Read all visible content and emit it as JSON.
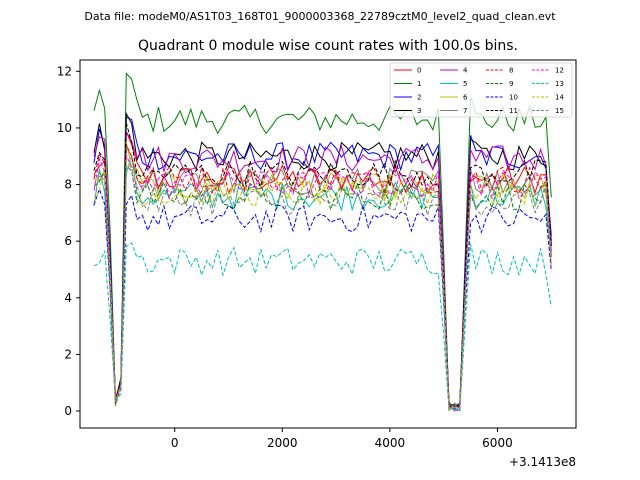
{
  "suptitle": "Data file: modeM0/AS1T03_168T01_9000003368_22789cztM0_level2_quad_clean.evt",
  "chart_data": {
    "type": "line",
    "title": "Quadrant 0 module wise count rates with 100.0s bins.",
    "xlabel": "",
    "ylabel": "",
    "x_offset_label": "+3.1413e8",
    "xlim": [
      -1760,
      7460
    ],
    "ylim": [
      -0.6,
      12.4
    ],
    "x_ticks": [
      0,
      2000,
      4000,
      6000
    ],
    "x_tick_labels": [
      "0",
      "2000",
      "4000",
      "6000"
    ],
    "y_ticks": [
      0,
      2,
      4,
      6,
      8,
      10,
      12
    ],
    "y_tick_labels": [
      "0",
      "2",
      "4",
      "6",
      "8",
      "10",
      "12"
    ],
    "grid": false,
    "legend_position": "top-right",
    "legend_columns": 4,
    "x_start": -1500,
    "x_step": 100,
    "num_points": 86,
    "dip_profile": [
      {
        "index": 0,
        "factor": 1.0
      },
      {
        "index": 1,
        "factor": 1.08
      },
      {
        "index": 2,
        "factor": 1.06
      },
      {
        "index": 3,
        "factor": 0.6
      },
      {
        "index": 4,
        "factor": 0.02
      },
      {
        "index": 5,
        "factor": 0.12
      },
      {
        "index": 6,
        "factor": 1.15
      },
      {
        "index": 7,
        "factor": 1.12
      },
      {
        "index": 8,
        "factor": 1.03
      },
      {
        "index": 64,
        "factor": 1.0
      },
      {
        "index": 65,
        "factor": 0.55
      },
      {
        "index": 66,
        "factor": 0.0
      },
      {
        "index": 67,
        "factor": 0.0
      },
      {
        "index": 68,
        "factor": 0.0
      },
      {
        "index": 69,
        "factor": 0.55
      },
      {
        "index": 70,
        "factor": 1.05
      },
      {
        "index": 84,
        "factor": 1.0
      },
      {
        "index": 85,
        "factor": 0.7
      }
    ],
    "series": [
      {
        "name": "0",
        "color": "#ff0000",
        "dashed": false,
        "level": 8.2
      },
      {
        "name": "1",
        "color": "#008000",
        "dashed": false,
        "level": 10.3
      },
      {
        "name": "2",
        "color": "#0000ff",
        "dashed": false,
        "level": 9.0
      },
      {
        "name": "3",
        "color": "#000000",
        "dashed": false,
        "level": 9.0
      },
      {
        "name": "4",
        "color": "#bf00bf",
        "dashed": false,
        "level": 8.9
      },
      {
        "name": "5",
        "color": "#00bfbf",
        "dashed": false,
        "level": 7.6
      },
      {
        "name": "6",
        "color": "#bfbf00",
        "dashed": false,
        "level": 7.9
      },
      {
        "name": "7",
        "color": "#808080",
        "dashed": false,
        "level": 8.1
      },
      {
        "name": "8",
        "color": "#ff0000",
        "dashed": true,
        "level": 8.2
      },
      {
        "name": "9",
        "color": "#008000",
        "dashed": true,
        "level": 7.6
      },
      {
        "name": "10",
        "color": "#0000ff",
        "dashed": true,
        "level": 6.8
      },
      {
        "name": "11",
        "color": "#000000",
        "dashed": true,
        "level": 8.4
      },
      {
        "name": "12",
        "color": "#ff00ff",
        "dashed": true,
        "level": 8.0
      },
      {
        "name": "13",
        "color": "#00bfbf",
        "dashed": true,
        "level": 5.3
      },
      {
        "name": "14",
        "color": "#bfbf00",
        "dashed": true,
        "level": 7.7
      },
      {
        "name": "15",
        "color": "#808080",
        "dashed": true,
        "level": 7.4
      }
    ]
  }
}
